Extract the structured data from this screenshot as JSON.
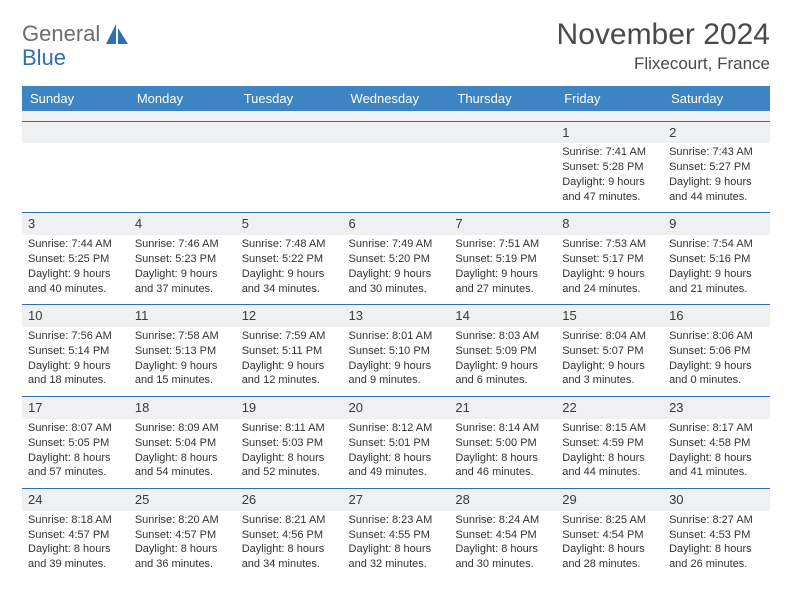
{
  "brand": {
    "name1": "General",
    "name2": "Blue"
  },
  "title": "November 2024",
  "location": "Flixecourt, France",
  "colors": {
    "header_bg": "#3d84c4",
    "rule": "#2f6fb0",
    "daynum_bg": "#eef0f2",
    "text": "#333333",
    "brand_gray": "#6d6d6d",
    "brand_blue": "#2f6fb0"
  },
  "weekdays": [
    "Sunday",
    "Monday",
    "Tuesday",
    "Wednesday",
    "Thursday",
    "Friday",
    "Saturday"
  ],
  "weeks": [
    [
      null,
      null,
      null,
      null,
      null,
      {
        "n": "1",
        "sr": "Sunrise: 7:41 AM",
        "ss": "Sunset: 5:28 PM",
        "d1": "Daylight: 9 hours",
        "d2": "and 47 minutes."
      },
      {
        "n": "2",
        "sr": "Sunrise: 7:43 AM",
        "ss": "Sunset: 5:27 PM",
        "d1": "Daylight: 9 hours",
        "d2": "and 44 minutes."
      }
    ],
    [
      {
        "n": "3",
        "sr": "Sunrise: 7:44 AM",
        "ss": "Sunset: 5:25 PM",
        "d1": "Daylight: 9 hours",
        "d2": "and 40 minutes."
      },
      {
        "n": "4",
        "sr": "Sunrise: 7:46 AM",
        "ss": "Sunset: 5:23 PM",
        "d1": "Daylight: 9 hours",
        "d2": "and 37 minutes."
      },
      {
        "n": "5",
        "sr": "Sunrise: 7:48 AM",
        "ss": "Sunset: 5:22 PM",
        "d1": "Daylight: 9 hours",
        "d2": "and 34 minutes."
      },
      {
        "n": "6",
        "sr": "Sunrise: 7:49 AM",
        "ss": "Sunset: 5:20 PM",
        "d1": "Daylight: 9 hours",
        "d2": "and 30 minutes."
      },
      {
        "n": "7",
        "sr": "Sunrise: 7:51 AM",
        "ss": "Sunset: 5:19 PM",
        "d1": "Daylight: 9 hours",
        "d2": "and 27 minutes."
      },
      {
        "n": "8",
        "sr": "Sunrise: 7:53 AM",
        "ss": "Sunset: 5:17 PM",
        "d1": "Daylight: 9 hours",
        "d2": "and 24 minutes."
      },
      {
        "n": "9",
        "sr": "Sunrise: 7:54 AM",
        "ss": "Sunset: 5:16 PM",
        "d1": "Daylight: 9 hours",
        "d2": "and 21 minutes."
      }
    ],
    [
      {
        "n": "10",
        "sr": "Sunrise: 7:56 AM",
        "ss": "Sunset: 5:14 PM",
        "d1": "Daylight: 9 hours",
        "d2": "and 18 minutes."
      },
      {
        "n": "11",
        "sr": "Sunrise: 7:58 AM",
        "ss": "Sunset: 5:13 PM",
        "d1": "Daylight: 9 hours",
        "d2": "and 15 minutes."
      },
      {
        "n": "12",
        "sr": "Sunrise: 7:59 AM",
        "ss": "Sunset: 5:11 PM",
        "d1": "Daylight: 9 hours",
        "d2": "and 12 minutes."
      },
      {
        "n": "13",
        "sr": "Sunrise: 8:01 AM",
        "ss": "Sunset: 5:10 PM",
        "d1": "Daylight: 9 hours",
        "d2": "and 9 minutes."
      },
      {
        "n": "14",
        "sr": "Sunrise: 8:03 AM",
        "ss": "Sunset: 5:09 PM",
        "d1": "Daylight: 9 hours",
        "d2": "and 6 minutes."
      },
      {
        "n": "15",
        "sr": "Sunrise: 8:04 AM",
        "ss": "Sunset: 5:07 PM",
        "d1": "Daylight: 9 hours",
        "d2": "and 3 minutes."
      },
      {
        "n": "16",
        "sr": "Sunrise: 8:06 AM",
        "ss": "Sunset: 5:06 PM",
        "d1": "Daylight: 9 hours",
        "d2": "and 0 minutes."
      }
    ],
    [
      {
        "n": "17",
        "sr": "Sunrise: 8:07 AM",
        "ss": "Sunset: 5:05 PM",
        "d1": "Daylight: 8 hours",
        "d2": "and 57 minutes."
      },
      {
        "n": "18",
        "sr": "Sunrise: 8:09 AM",
        "ss": "Sunset: 5:04 PM",
        "d1": "Daylight: 8 hours",
        "d2": "and 54 minutes."
      },
      {
        "n": "19",
        "sr": "Sunrise: 8:11 AM",
        "ss": "Sunset: 5:03 PM",
        "d1": "Daylight: 8 hours",
        "d2": "and 52 minutes."
      },
      {
        "n": "20",
        "sr": "Sunrise: 8:12 AM",
        "ss": "Sunset: 5:01 PM",
        "d1": "Daylight: 8 hours",
        "d2": "and 49 minutes."
      },
      {
        "n": "21",
        "sr": "Sunrise: 8:14 AM",
        "ss": "Sunset: 5:00 PM",
        "d1": "Daylight: 8 hours",
        "d2": "and 46 minutes."
      },
      {
        "n": "22",
        "sr": "Sunrise: 8:15 AM",
        "ss": "Sunset: 4:59 PM",
        "d1": "Daylight: 8 hours",
        "d2": "and 44 minutes."
      },
      {
        "n": "23",
        "sr": "Sunrise: 8:17 AM",
        "ss": "Sunset: 4:58 PM",
        "d1": "Daylight: 8 hours",
        "d2": "and 41 minutes."
      }
    ],
    [
      {
        "n": "24",
        "sr": "Sunrise: 8:18 AM",
        "ss": "Sunset: 4:57 PM",
        "d1": "Daylight: 8 hours",
        "d2": "and 39 minutes."
      },
      {
        "n": "25",
        "sr": "Sunrise: 8:20 AM",
        "ss": "Sunset: 4:57 PM",
        "d1": "Daylight: 8 hours",
        "d2": "and 36 minutes."
      },
      {
        "n": "26",
        "sr": "Sunrise: 8:21 AM",
        "ss": "Sunset: 4:56 PM",
        "d1": "Daylight: 8 hours",
        "d2": "and 34 minutes."
      },
      {
        "n": "27",
        "sr": "Sunrise: 8:23 AM",
        "ss": "Sunset: 4:55 PM",
        "d1": "Daylight: 8 hours",
        "d2": "and 32 minutes."
      },
      {
        "n": "28",
        "sr": "Sunrise: 8:24 AM",
        "ss": "Sunset: 4:54 PM",
        "d1": "Daylight: 8 hours",
        "d2": "and 30 minutes."
      },
      {
        "n": "29",
        "sr": "Sunrise: 8:25 AM",
        "ss": "Sunset: 4:54 PM",
        "d1": "Daylight: 8 hours",
        "d2": "and 28 minutes."
      },
      {
        "n": "30",
        "sr": "Sunrise: 8:27 AM",
        "ss": "Sunset: 4:53 PM",
        "d1": "Daylight: 8 hours",
        "d2": "and 26 minutes."
      }
    ]
  ]
}
